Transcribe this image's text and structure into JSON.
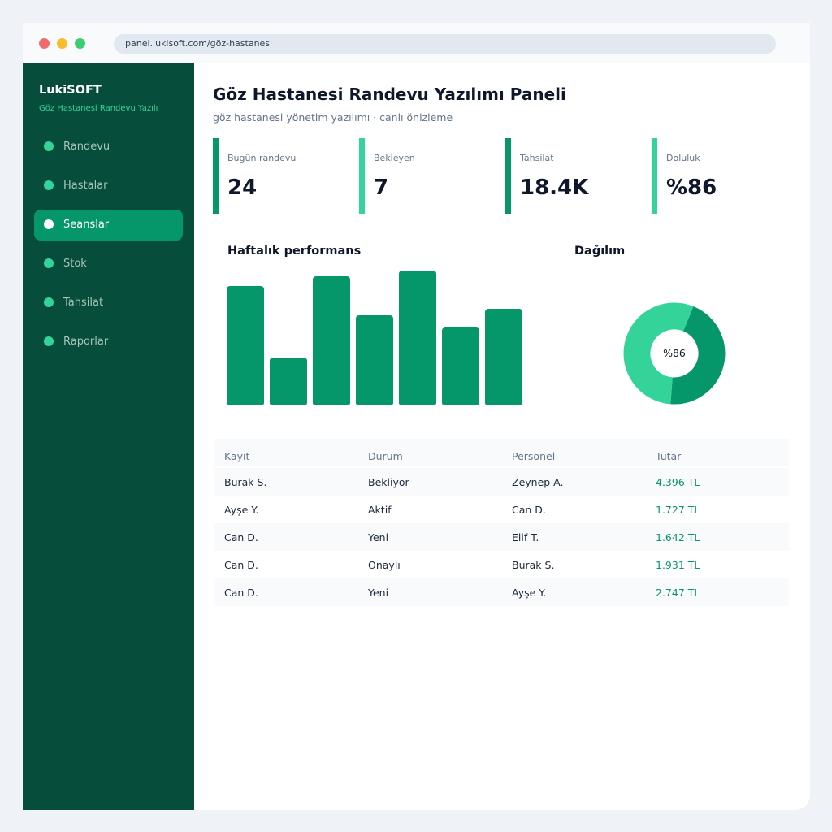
{
  "browser": {
    "url": "panel.lukisoft.com/göz-hastanesi"
  },
  "sidebar": {
    "brand": "LukiSOFT",
    "brand_sub": "Göz Hastanesi Randevu Yazılı",
    "items": [
      {
        "label": "Randevu",
        "active": false
      },
      {
        "label": "Hastalar",
        "active": false
      },
      {
        "label": "Seanslar",
        "active": true
      },
      {
        "label": "Stok",
        "active": false
      },
      {
        "label": "Tahsilat",
        "active": false
      },
      {
        "label": "Raporlar",
        "active": false
      }
    ]
  },
  "header": {
    "title": "Göz Hastanesi Randevu Yazılımı Paneli",
    "subtitle": "göz hastanesi yönetim yazılımı · canlı önizleme"
  },
  "stats": [
    {
      "label": "Bugün randevu",
      "value": "24"
    },
    {
      "label": "Bekleyen",
      "value": "7"
    },
    {
      "label": "Tahsilat",
      "value": "18.4K"
    },
    {
      "label": "Doluluk",
      "value": "%86"
    }
  ],
  "charts": {
    "performance_title": "Haftalık performans",
    "distribution_title": "Dağılım",
    "donut_label": "%86"
  },
  "chart_data": [
    {
      "type": "bar",
      "title": "Haftalık performans",
      "values": [
        106,
        42,
        115,
        80,
        120,
        69,
        86
      ],
      "ylim": [
        0,
        120
      ]
    },
    {
      "type": "pie",
      "title": "Dağılım",
      "values": [
        45,
        55
      ],
      "colors": [
        "#059669",
        "#34d399"
      ],
      "center_label": "%86"
    }
  ],
  "table": {
    "headers": [
      "Kayıt",
      "Durum",
      "Personel",
      "Tutar"
    ],
    "rows": [
      [
        "Burak S.",
        "Bekliyor",
        "Zeynep A.",
        "4.396 TL"
      ],
      [
        "Ayşe Y.",
        "Aktif",
        "Can D.",
        "1.727 TL"
      ],
      [
        "Can D.",
        "Yeni",
        "Elif T.",
        "1.642 TL"
      ],
      [
        "Can D.",
        "Onaylı",
        "Burak S.",
        "1.931 TL"
      ],
      [
        "Can D.",
        "Yeni",
        "Ayşe Y.",
        "2.747 TL"
      ]
    ]
  },
  "colors": {
    "sidebar_bg": "#064e3b",
    "accent": "#059669",
    "accent_light": "#34d399"
  }
}
